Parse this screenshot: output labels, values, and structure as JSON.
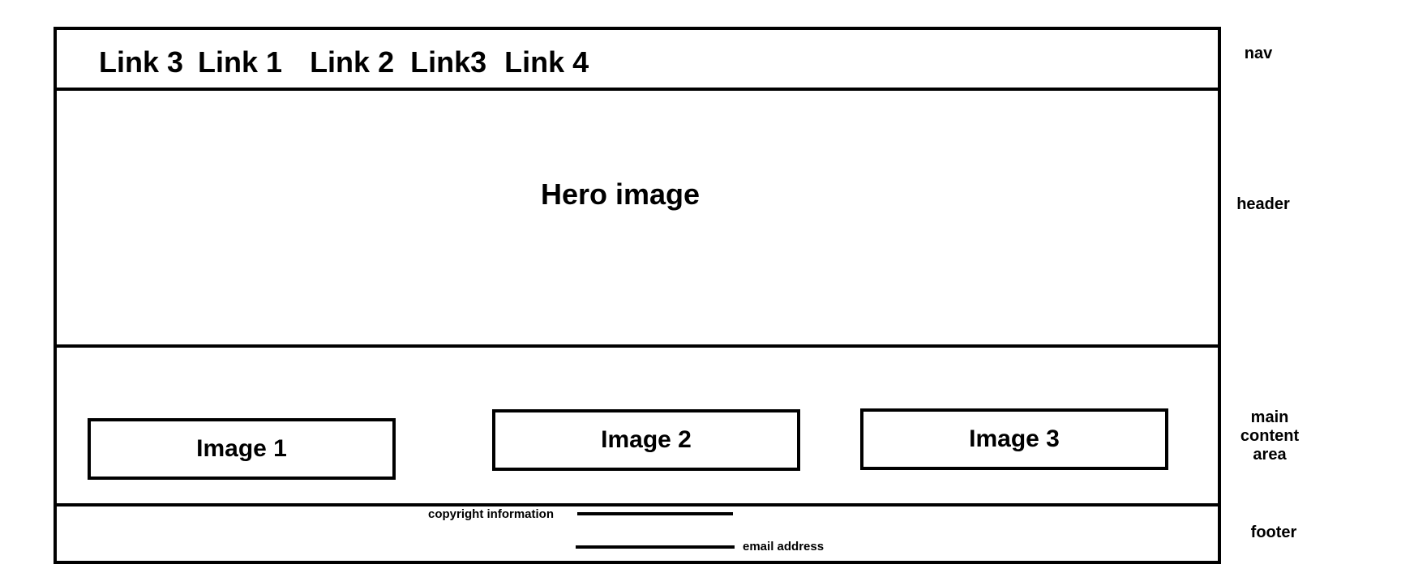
{
  "nav": {
    "links": [
      "Link 3",
      "Link 1",
      "Link 2",
      "Link3",
      "Link 4"
    ]
  },
  "header": {
    "hero_label": "Hero image"
  },
  "main": {
    "images": [
      "Image 1",
      "Image 2",
      "Image 3"
    ]
  },
  "footer": {
    "copyright_label": "copyright information",
    "email_label": "email address"
  },
  "side_labels": {
    "nav": "nav",
    "header": "header",
    "main": "main content area",
    "footer": "footer"
  }
}
